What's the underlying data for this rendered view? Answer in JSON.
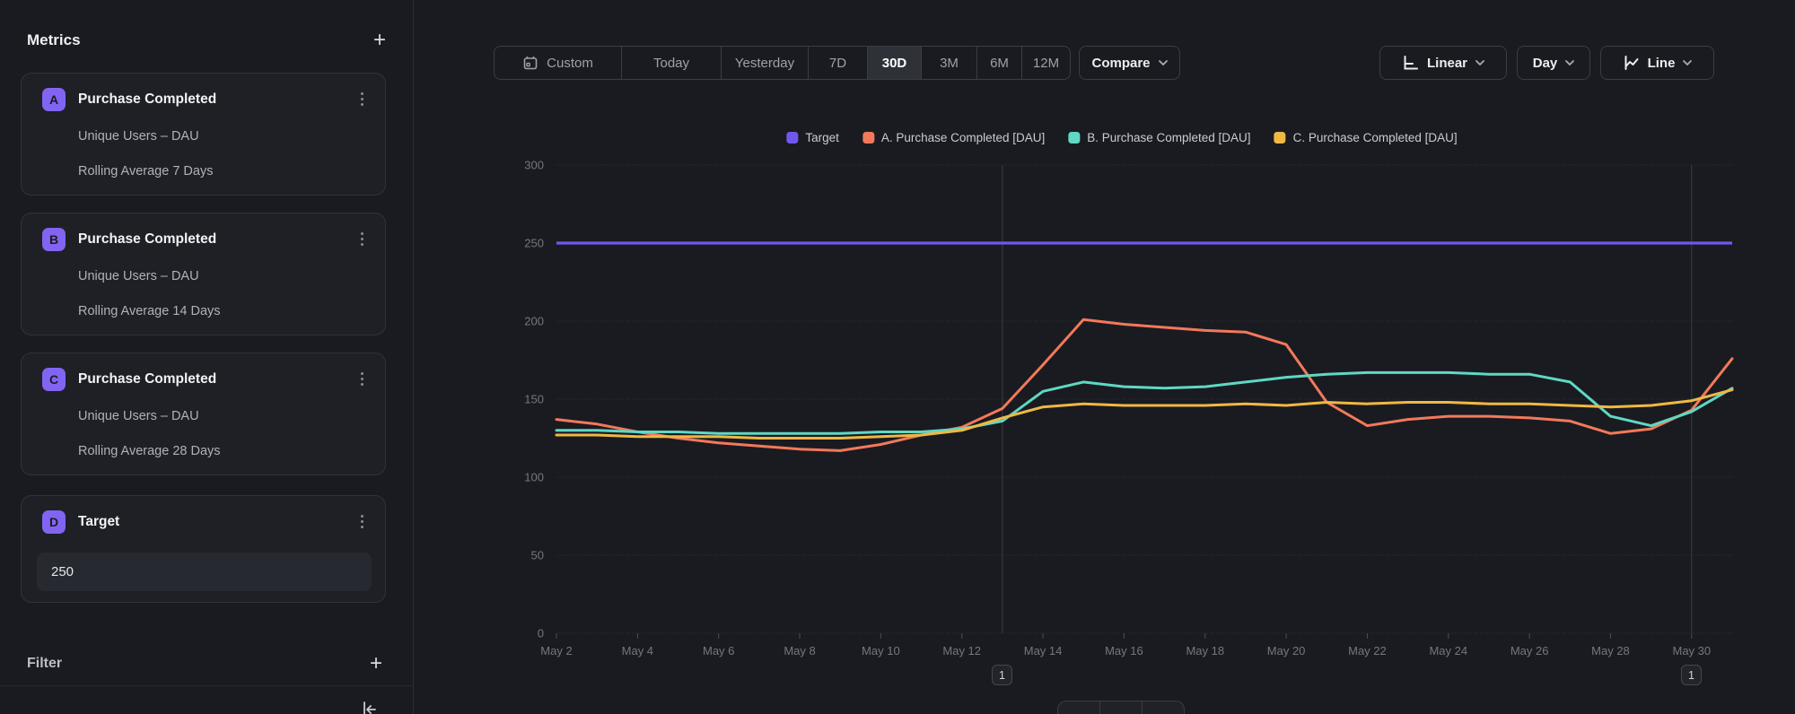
{
  "sidebar": {
    "title": "Metrics",
    "add_label": "+",
    "filter": {
      "label": "Filter",
      "add_label": "+"
    },
    "metrics": [
      {
        "letter": "A",
        "title": "Purchase Completed",
        "row1": "Unique Users – DAU",
        "row2": "Rolling Average 7 Days"
      },
      {
        "letter": "B",
        "title": "Purchase Completed",
        "row1": "Unique Users – DAU",
        "row2": "Rolling Average 14 Days"
      },
      {
        "letter": "C",
        "title": "Purchase Completed",
        "row1": "Unique Users – DAU",
        "row2": "Rolling Average 28 Days"
      },
      {
        "letter": "D",
        "title": "Target",
        "input_value": "250"
      }
    ]
  },
  "toolbar": {
    "ranges": [
      {
        "label": "Custom"
      },
      {
        "label": "Today"
      },
      {
        "label": "Yesterday"
      },
      {
        "label": "7D"
      },
      {
        "label": "30D"
      },
      {
        "label": "3M"
      },
      {
        "label": "6M"
      },
      {
        "label": "12M"
      }
    ],
    "active_range": "30D",
    "compare_label": "Compare",
    "scale_label": "Linear",
    "interval_label": "Day",
    "chart_type_label": "Line"
  },
  "chart_data": {
    "type": "line",
    "ylim": [
      0,
      300
    ],
    "y_ticks": [
      0,
      50,
      100,
      150,
      200,
      250,
      300
    ],
    "grid": true,
    "legend_position": "top-center",
    "days": [
      2,
      3,
      4,
      5,
      6,
      7,
      8,
      9,
      10,
      11,
      12,
      13,
      14,
      15,
      16,
      17,
      18,
      19,
      20,
      21,
      22,
      23,
      24,
      25,
      26,
      27,
      28,
      29,
      30,
      31
    ],
    "x_ticks": [
      {
        "day": 2,
        "label": "May 2"
      },
      {
        "day": 4,
        "label": "May 4"
      },
      {
        "day": 6,
        "label": "May 6"
      },
      {
        "day": 8,
        "label": "May 8"
      },
      {
        "day": 10,
        "label": "May 10"
      },
      {
        "day": 12,
        "label": "May 12"
      },
      {
        "day": 14,
        "label": "May 14"
      },
      {
        "day": 16,
        "label": "May 16"
      },
      {
        "day": 18,
        "label": "May 18"
      },
      {
        "day": 20,
        "label": "May 20"
      },
      {
        "day": 22,
        "label": "May 22"
      },
      {
        "day": 24,
        "label": "May 24"
      },
      {
        "day": 26,
        "label": "May 26"
      },
      {
        "day": 28,
        "label": "May 28"
      },
      {
        "day": 30,
        "label": "May 30"
      }
    ],
    "series": [
      {
        "name": "Target",
        "color": "#7257EE",
        "value": 250
      },
      {
        "name": "A. Purchase Completed [DAU]",
        "color": "#F2795B",
        "values": [
          137,
          134,
          129,
          125,
          122,
          120,
          118,
          117,
          121,
          127,
          132,
          144,
          172,
          201,
          198,
          196,
          194,
          193,
          185,
          148,
          133,
          137,
          139,
          139,
          138,
          136,
          128,
          131,
          143,
          176
        ]
      },
      {
        "name": "B. Purchase Completed [DAU]",
        "color": "#5FD8C4",
        "values": [
          130,
          130,
          129,
          129,
          128,
          128,
          128,
          128,
          129,
          129,
          131,
          136,
          155,
          161,
          158,
          157,
          158,
          161,
          164,
          166,
          167,
          167,
          167,
          166,
          166,
          161,
          139,
          133,
          142,
          157
        ]
      },
      {
        "name": "C. Purchase Completed [DAU]",
        "color": "#EFB844",
        "values": [
          127,
          127,
          126,
          126,
          126,
          125,
          125,
          125,
          126,
          127,
          130,
          138,
          145,
          147,
          146,
          146,
          146,
          147,
          146,
          148,
          147,
          148,
          148,
          147,
          147,
          146,
          145,
          146,
          149,
          156
        ]
      }
    ],
    "annotations": [
      {
        "day": 13,
        "label": "1"
      },
      {
        "day": 30,
        "label": "1"
      }
    ]
  }
}
